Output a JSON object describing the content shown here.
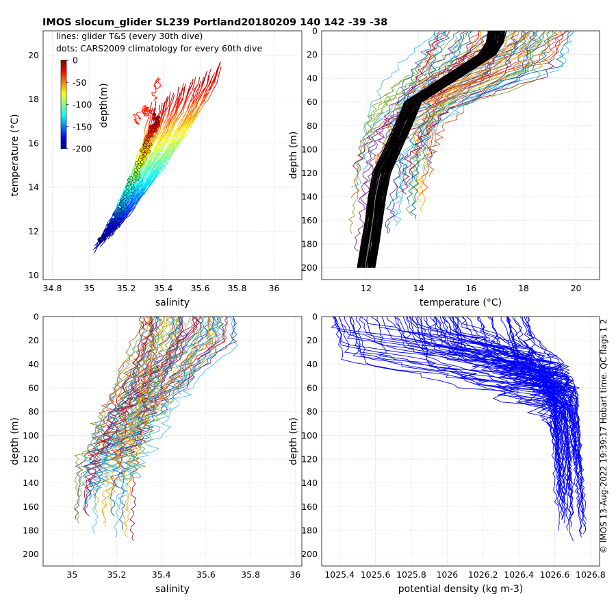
{
  "figure": {
    "title": "IMOS slocum_glider SL239 Portland20180209 140  142  -39  -38",
    "copyright": "© IMOS 13-Aug-2022 19:39:17 Hobart time. QC flags 1  2",
    "legend_lines": "lines: glider T&S (every 30th dive)",
    "legend_dots": "dots: CARS2009 climatology for every 60th dive",
    "colorbar": {
      "label": "depth(m)",
      "ticks": [
        "0",
        "-50",
        "-100",
        "-150",
        "-200"
      ],
      "colors": [
        "#7f0000",
        "#ff0000",
        "#ff8000",
        "#ffff00",
        "#80ff80",
        "#00ffff",
        "#0080ff",
        "#0000ff",
        "#00007f"
      ]
    }
  },
  "chart_data": [
    {
      "type": "scatter",
      "name": "TS diagram",
      "xlabel": "salinity",
      "ylabel": "temperature (°C)",
      "xlim": [
        34.75,
        36.15
      ],
      "ylim": [
        9.8,
        21.1
      ],
      "xticks": [
        "34.8",
        "35",
        "35.2",
        "35.4",
        "35.6",
        "35.8",
        "36"
      ],
      "yticks": [
        "10",
        "12",
        "14",
        "16",
        "18",
        "20"
      ],
      "grid": true,
      "glider_ts_envelope": {
        "cold_end": [
          35.01,
          11.0
        ],
        "warm_end": [
          35.73,
          19.6
        ],
        "warm_left_edge": [
          35.28,
          17.8
        ]
      },
      "climatology_dots": [
        [
          35.06,
          11.6
        ],
        [
          35.12,
          12.2
        ],
        [
          35.17,
          12.9
        ],
        [
          35.2,
          13.5
        ],
        [
          35.25,
          14.6
        ],
        [
          35.3,
          15.6
        ],
        [
          35.34,
          16.5
        ],
        [
          35.37,
          17.2
        ]
      ]
    },
    {
      "type": "line",
      "name": "temperature profiles",
      "xlabel": "temperature (°C)",
      "ylabel": "depth (m)",
      "xlim": [
        10.3,
        20.9
      ],
      "ylim": [
        210,
        0
      ],
      "xticks": [
        "12",
        "14",
        "16",
        "18",
        "20"
      ],
      "yticks": [
        "0",
        "20",
        "40",
        "60",
        "80",
        "100",
        "120",
        "140",
        "160",
        "180",
        "200"
      ],
      "grid": true,
      "climatology_band": {
        "depth": [
          0,
          10,
          20,
          40,
          60,
          70,
          80,
          100,
          120,
          140,
          160,
          180,
          200
        ],
        "temperature": [
          17.0,
          16.9,
          16.6,
          15.2,
          13.8,
          13.6,
          13.4,
          13.0,
          12.6,
          12.4,
          12.3,
          12.15,
          12.0
        ]
      },
      "profile_ranges": {
        "surface_temperature": [
          14.7,
          19.9
        ],
        "bottom_temperature": [
          11.0,
          13.8
        ],
        "max_depth": 190
      }
    },
    {
      "type": "line",
      "name": "salinity profiles",
      "xlabel": "salinity",
      "ylabel": "depth (m)",
      "xlim": [
        34.87,
        36.03
      ],
      "ylim": [
        210,
        0
      ],
      "xticks": [
        "35",
        "35.2",
        "35.4",
        "35.6",
        "35.8",
        "36"
      ],
      "yticks": [
        "0",
        "20",
        "40",
        "60",
        "80",
        "100",
        "120",
        "140",
        "160",
        "180",
        "200"
      ],
      "grid": true,
      "profile_ranges": {
        "surface_salinity": [
          35.3,
          35.73
        ],
        "bottom_salinity": [
          35.02,
          35.25
        ],
        "max_depth": 190
      }
    },
    {
      "type": "line",
      "name": "density profiles",
      "xlabel": "potential density (kg m-3)",
      "ylabel": "depth (m)",
      "xlim": [
        1025.3,
        1026.85
      ],
      "ylim": [
        210,
        0
      ],
      "xticks": [
        "1025.4",
        "1025.6",
        "1025.8",
        "1026",
        "1026.2",
        "1026.4",
        "1026.6",
        "1026.8"
      ],
      "yticks": [
        "0",
        "20",
        "40",
        "60",
        "80",
        "100",
        "120",
        "140",
        "160",
        "180",
        "200"
      ],
      "grid": true,
      "series_color": "#0000ff",
      "profile_ranges": {
        "surface_density": [
          1025.35,
          1026.45
        ],
        "bottom_density": [
          1026.62,
          1026.78
        ],
        "max_depth": 190
      }
    }
  ]
}
